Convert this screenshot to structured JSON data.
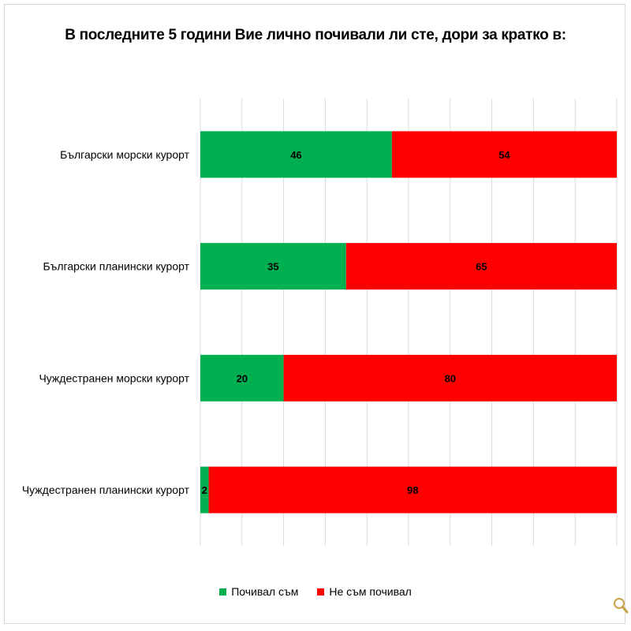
{
  "chart_data": {
    "type": "bar",
    "orientation": "horizontal",
    "stacked": true,
    "title": "В последните 5 години Вие лично почивали ли сте, дори за кратко в:",
    "categories": [
      "Български морски курорт",
      "Български планински курорт",
      "Чуждестранен морски курорт",
      "Чуждестранен планински курорт"
    ],
    "series": [
      {
        "name": "Почивал съм",
        "color": "#00b050",
        "values": [
          46,
          35,
          20,
          2
        ]
      },
      {
        "name": "Не съм почивал",
        "color": "#ff0000",
        "values": [
          54,
          65,
          80,
          98
        ]
      }
    ],
    "xlim": [
      0,
      100
    ],
    "grid": "vertical",
    "legend": "bottom"
  },
  "zoom_icon": "magnifier-icon"
}
